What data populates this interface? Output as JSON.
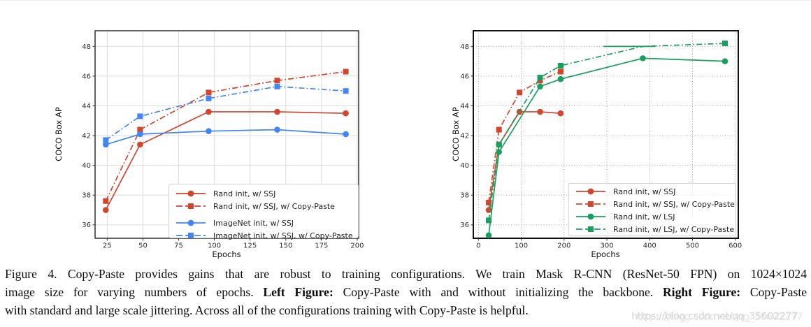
{
  "watermark": {
    "text": "https://blog.csdn.net/qq_35602277"
  },
  "caption": {
    "lines": [
      {
        "justify": true,
        "segments": [
          {
            "text": "Figure 4. Copy-Paste provides gains that are robust to training configurations. We train Mask R-CNN (ResNet-50 FPN) on 1024×1024",
            "bold": false
          }
        ]
      },
      {
        "justify": true,
        "segments": [
          {
            "text": "image size for varying numbers of epochs. ",
            "bold": false
          },
          {
            "text": "Left Figure:",
            "bold": true
          },
          {
            "text": " Copy-Paste with and without initializing the backbone. ",
            "bold": false
          },
          {
            "text": "Right Figure:",
            "bold": true
          },
          {
            "text": " Copy-Paste",
            "bold": false
          }
        ]
      },
      {
        "justify": false,
        "segments": [
          {
            "text": "with standard and large scale jittering. Across all of the configurations training with Copy-Paste is helpful.",
            "bold": false
          }
        ]
      }
    ]
  },
  "chart_data": [
    {
      "type": "line",
      "title": "",
      "xlabel": "Epochs",
      "ylabel": "COCO Box AP",
      "xlim": [
        16.5,
        201
      ],
      "ylim": [
        35.1,
        49.05
      ],
      "xticks": [
        25,
        50,
        75,
        100,
        125,
        150,
        175,
        200
      ],
      "yticks": [
        36,
        38,
        40,
        42,
        44,
        46,
        48
      ],
      "grid": "solid",
      "legend_position": "lower right",
      "series": [
        {
          "name": "Rand init, w/ SSJ",
          "color": "#d5452e",
          "line": "solid",
          "marker": "circle",
          "points": [
            [
              24,
              37.0
            ],
            [
              48,
              41.4
            ],
            [
              96,
              43.6
            ],
            [
              144,
              43.6
            ],
            [
              192,
              43.5
            ]
          ]
        },
        {
          "name": "Rand init, w/ SSJ, w/ Copy-Paste",
          "color": "#d5452e",
          "line": "dashdot",
          "marker": "square",
          "points": [
            [
              24,
              37.6
            ],
            [
              48,
              42.4
            ],
            [
              96,
              44.9
            ],
            [
              144,
              45.7
            ],
            [
              192,
              46.3
            ]
          ]
        },
        {
          "name": "ImageNet init, w/ SSJ",
          "color": "#4285f4",
          "line": "solid",
          "marker": "circle",
          "points": [
            [
              24,
              41.4
            ],
            [
              48,
              42.1
            ],
            [
              96,
              42.3
            ],
            [
              144,
              42.4
            ],
            [
              192,
              42.1
            ]
          ]
        },
        {
          "name": "ImageNet init, w/ SSJ, w/ Copy-Paste",
          "color": "#4285f4",
          "line": "dashdot",
          "marker": "square",
          "points": [
            [
              24,
              41.7
            ],
            [
              48,
              43.3
            ],
            [
              96,
              44.5
            ],
            [
              144,
              45.3
            ],
            [
              192,
              45.0
            ]
          ]
        }
      ]
    },
    {
      "type": "line",
      "title": "",
      "xlabel": "Epochs",
      "ylabel": "COCO Box AP",
      "xlim": [
        -12,
        607
      ],
      "ylim": [
        35.1,
        49.05
      ],
      "xticks": [
        0,
        100,
        200,
        300,
        400,
        500,
        600
      ],
      "yticks": [
        36,
        38,
        40,
        42,
        44,
        46,
        48
      ],
      "grid": "dotted",
      "legend_position": "lower right",
      "series": [
        {
          "name": "Rand init, w/ SSJ",
          "color": "#d5452e",
          "line": "solid",
          "marker": "circle",
          "points": [
            [
              24,
              37.0
            ],
            [
              48,
              41.4
            ],
            [
              96,
              43.6
            ],
            [
              144,
              43.6
            ],
            [
              192,
              43.5
            ]
          ]
        },
        {
          "name": "Rand init, w/ SSJ, w/ Copy-Paste",
          "color": "#d5452e",
          "line": "dashdot",
          "marker": "square",
          "points": [
            [
              24,
              37.5
            ],
            [
              48,
              42.4
            ],
            [
              96,
              44.9
            ],
            [
              144,
              45.7
            ],
            [
              192,
              46.3
            ]
          ]
        },
        {
          "name": "Rand init, w/ LSJ",
          "color": "#16a05c",
          "line": "solid",
          "marker": "circle",
          "points": [
            [
              24,
              35.3
            ],
            [
              48,
              40.9
            ],
            [
              144,
              45.3
            ],
            [
              192,
              45.8
            ],
            [
              384,
              47.2
            ],
            [
              576,
              47.0
            ]
          ]
        },
        {
          "name": "Rand init, w/ LSJ, w/ Copy-Paste",
          "color": "#16a05c",
          "line": "dashdot",
          "marker": "square",
          "points": [
            [
              24,
              36.3
            ],
            [
              48,
              41.4
            ],
            [
              144,
              45.9
            ],
            [
              192,
              46.7
            ],
            [
              384,
              48.0
            ],
            [
              576,
              48.2
            ]
          ],
          "marker_skip": [
            4
          ]
        }
      ],
      "extra_segments": [
        {
          "x_start": 292,
          "x_end": 413,
          "y": 48.0,
          "color": "#16a05c",
          "style": "solid"
        }
      ]
    }
  ]
}
